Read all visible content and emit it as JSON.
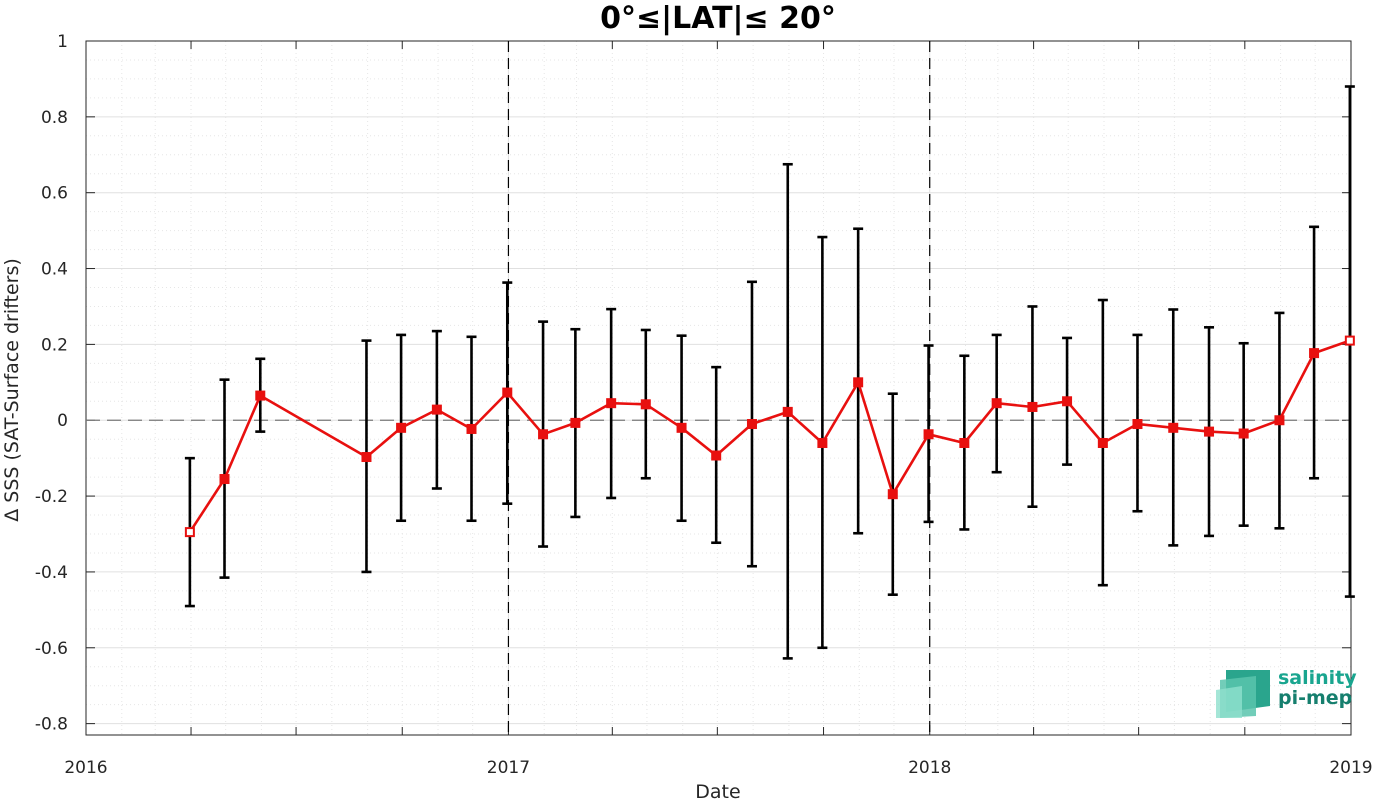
{
  "chart_data": {
    "type": "line",
    "title": "0°≤|LAT|≤ 20°",
    "xlabel": "Date",
    "ylabel": "Δ SSS (SAT-Surface drifters)",
    "xlim": [
      "2016-01-01",
      "2019-01-01"
    ],
    "ylim": [
      -0.83,
      1.0
    ],
    "x_ticks": [
      "2016",
      "2017",
      "2018",
      "2019"
    ],
    "y_ticks": [
      "1",
      "0.8",
      "0.6",
      "0.4",
      "0.2",
      "0",
      "-0.2",
      "-0.4",
      "-0.6",
      "-0.8"
    ],
    "grid": true,
    "reference_line": 0,
    "year_separators": [
      "2017-01-01",
      "2018-01-01"
    ],
    "colors": {
      "line": "#e8100f",
      "errorbar": "#000000",
      "grid": "#dcdcdc"
    },
    "series": [
      {
        "x": [
          "2016-03-31",
          "2016-04-30",
          "2016-05-31",
          "2016-08-31",
          "2016-09-30",
          "2016-10-31",
          "2016-11-30",
          "2016-12-31",
          "2017-01-31",
          "2017-02-28",
          "2017-03-31",
          "2017-04-30",
          "2017-05-31",
          "2017-06-30",
          "2017-07-31",
          "2017-08-31",
          "2017-09-30",
          "2017-10-31",
          "2017-11-30",
          "2017-12-31",
          "2018-01-31",
          "2018-02-28",
          "2018-03-31",
          "2018-04-30",
          "2018-05-31",
          "2018-06-30",
          "2018-07-31",
          "2018-08-31",
          "2018-09-30",
          "2018-10-31",
          "2018-11-30",
          "2018-12-31"
        ],
        "y": [
          -0.295,
          -0.155,
          0.065,
          -0.097,
          -0.02,
          0.028,
          -0.023,
          0.073,
          -0.037,
          -0.007,
          0.045,
          0.042,
          -0.02,
          -0.093,
          -0.01,
          0.022,
          -0.06,
          0.1,
          -0.195,
          -0.037,
          -0.06,
          0.045,
          0.035,
          0.05,
          -0.06,
          -0.01,
          -0.02,
          -0.03,
          -0.035,
          0.0,
          0.177,
          0.21
        ],
        "y_low": [
          -0.49,
          -0.415,
          -0.03,
          -0.4,
          -0.265,
          -0.18,
          -0.265,
          -0.22,
          -0.333,
          -0.255,
          -0.205,
          -0.153,
          -0.265,
          -0.323,
          -0.385,
          -0.628,
          -0.6,
          -0.298,
          -0.46,
          -0.268,
          -0.288,
          -0.137,
          -0.228,
          -0.117,
          -0.435,
          -0.24,
          -0.33,
          -0.305,
          -0.278,
          -0.285,
          -0.153,
          -0.465
        ],
        "y_high": [
          -0.1,
          0.107,
          0.162,
          0.21,
          0.225,
          0.235,
          0.22,
          0.363,
          0.26,
          0.24,
          0.293,
          0.238,
          0.223,
          0.14,
          0.365,
          0.675,
          0.483,
          0.505,
          0.07,
          0.197,
          0.17,
          0.225,
          0.3,
          0.217,
          0.317,
          0.225,
          0.292,
          0.245,
          0.203,
          0.283,
          0.51,
          0.88
        ],
        "open_markers": [
          0,
          31
        ]
      }
    ]
  },
  "logo": {
    "line1": "salinity",
    "line2": "pi-mep"
  }
}
